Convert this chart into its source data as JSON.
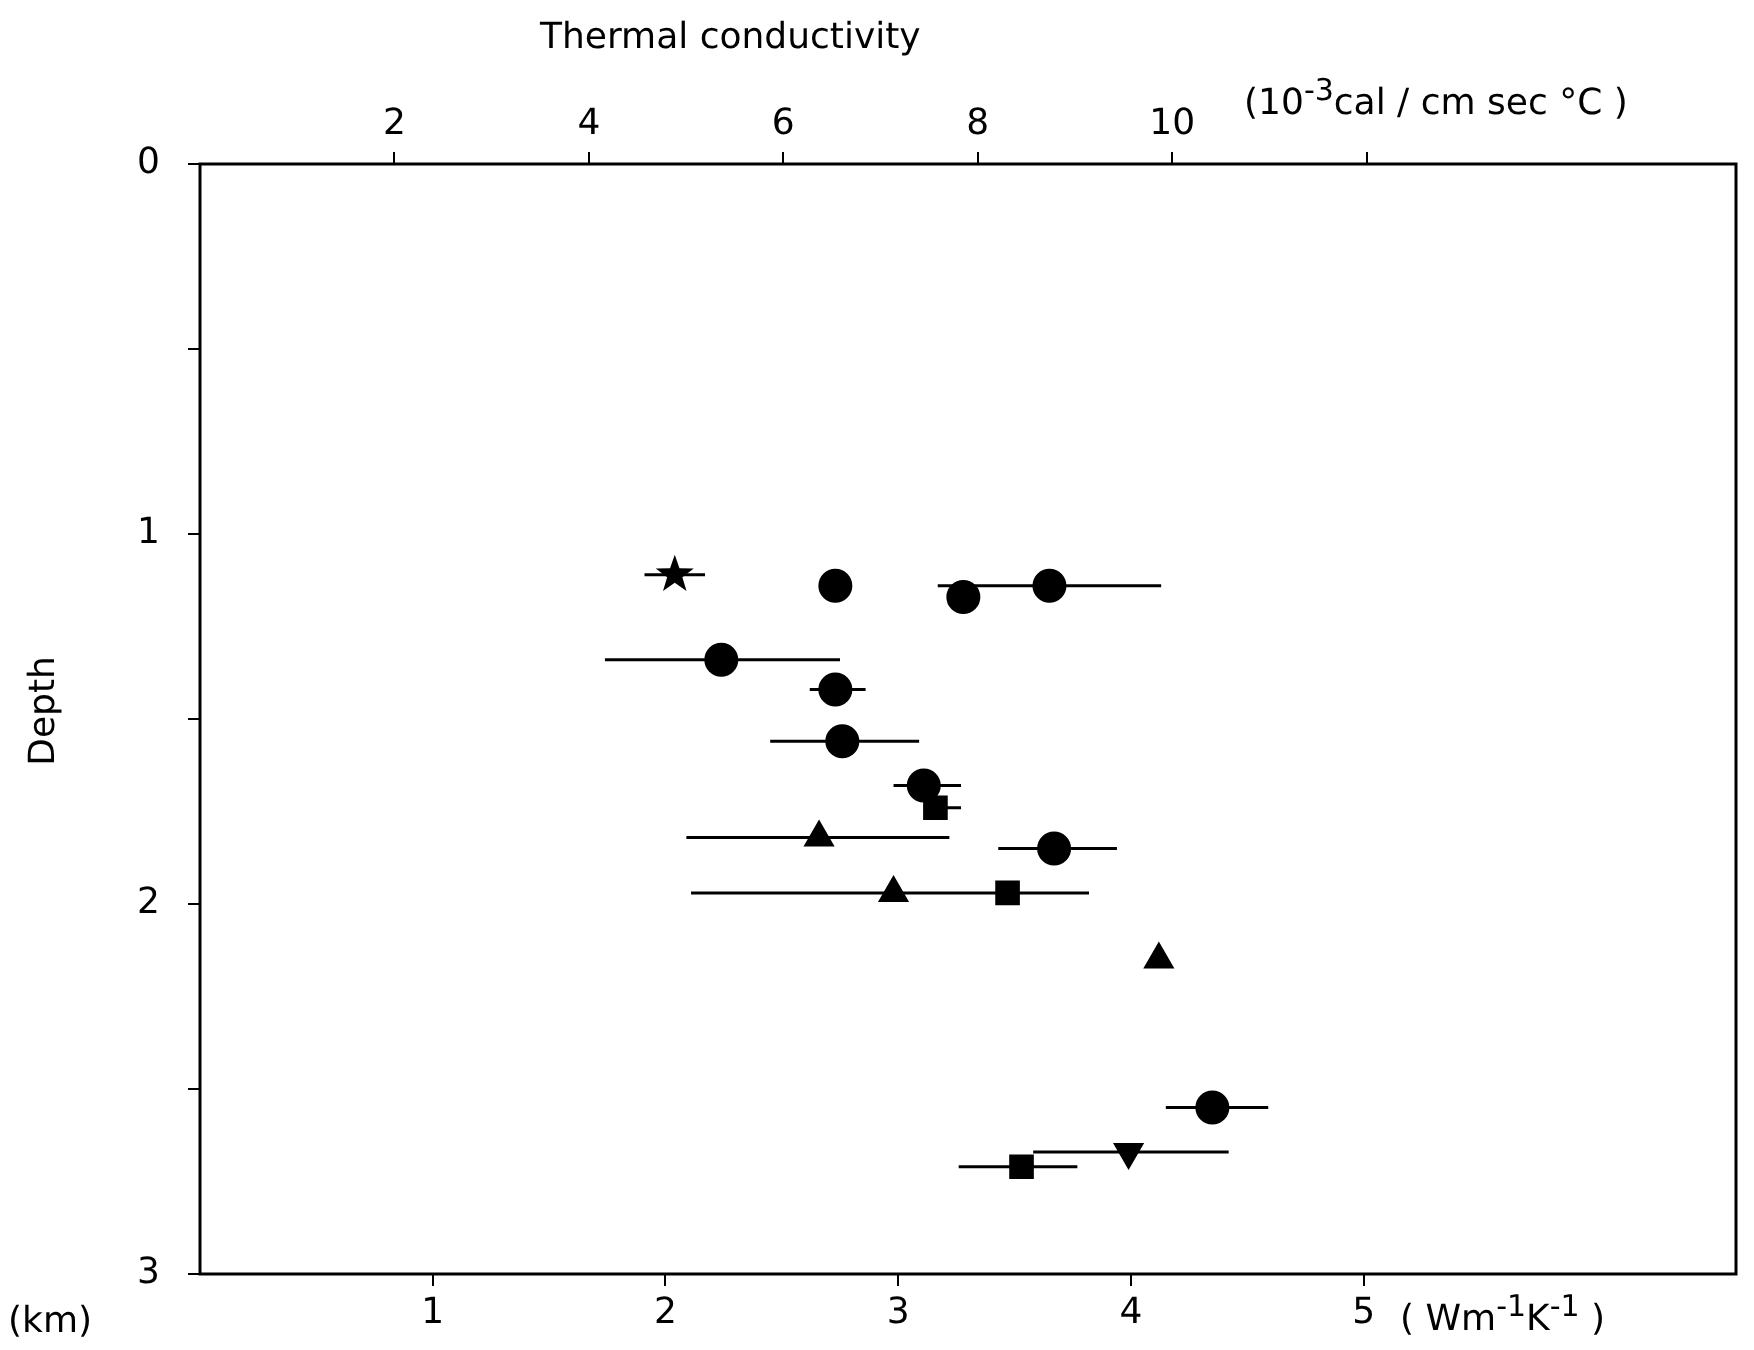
{
  "chart_data": {
    "type": "scatter",
    "x2label": "Thermal conductivity",
    "ylabel": "Depth",
    "xlabel": "( Wm$^{-1}$K$^{-1}$ )",
    "annotations": [
      "(km)",
      "(10$^{-3}$cal / cm sec °C )"
    ],
    "xlim": [
      0,
      6.6
    ],
    "xticks": [
      1,
      2,
      3,
      4,
      5
    ],
    "x2lim": [
      0,
      15.8
    ],
    "x2ticks": [
      2,
      4,
      6,
      8,
      10,
      {
        "value": 12,
        "label": null
      }
    ],
    "ylim": [
      3,
      0
    ],
    "yticks": [
      0,
      {
        "value": 0.5,
        "label": null
      },
      1,
      {
        "value": 1.5,
        "label": null
      },
      2,
      {
        "value": 2.5,
        "label": null
      },
      3
    ],
    "grid": false,
    "legend": false,
    "series": [
      {
        "color": "#000000",
        "marker": "star",
        "x": [
          2.04
        ],
        "values": [
          1.11
        ],
        "xerrors": [
          [
            1.91,
            2.17
          ]
        ]
      },
      {
        "color": "#000000",
        "marker": "circle",
        "x": [
          2.73,
          3.28,
          3.65,
          2.24,
          2.73,
          2.76,
          3.11,
          3.67,
          4.35
        ],
        "values": [
          1.14,
          1.17,
          1.14,
          1.34,
          1.42,
          1.56,
          1.68,
          1.85,
          2.55
        ],
        "xerrors": [
          null,
          null,
          [
            3.17,
            4.13
          ],
          [
            1.74,
            2.75
          ],
          [
            2.62,
            2.86
          ],
          [
            2.45,
            3.09
          ],
          [
            2.98,
            3.27
          ],
          [
            3.43,
            3.94
          ],
          [
            4.15,
            4.59
          ]
        ]
      },
      {
        "color": "#000000",
        "marker": "triangle",
        "x": [
          2.66,
          2.98,
          4.12
        ],
        "values": [
          1.82,
          1.97,
          2.15
        ],
        "xerrors": [
          [
            2.09,
            3.22
          ],
          [
            2.11,
            3.82
          ],
          null
        ]
      },
      {
        "color": "#000000",
        "marker": "square",
        "x": [
          3.16,
          3.47,
          3.53
        ],
        "values": [
          1.74,
          1.97,
          2.71
        ],
        "xerrors": [
          [
            3.13,
            3.27
          ],
          null,
          [
            3.26,
            3.77
          ]
        ]
      },
      {
        "color": "#000000",
        "marker": "triangle-down",
        "x": [
          3.99
        ],
        "values": [
          2.67
        ],
        "xerrors": [
          [
            3.58,
            4.42
          ]
        ]
      }
    ]
  }
}
